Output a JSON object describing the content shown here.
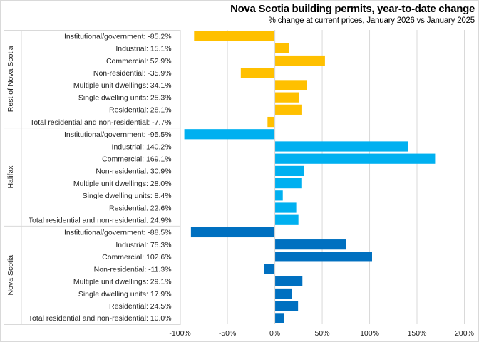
{
  "chart_data": {
    "type": "bar",
    "orientation": "horizontal",
    "title": "Nova Scotia building permits, year-to-date change",
    "subtitle": "% change at current prices, January 2026 vs January 2025",
    "xlabel": "",
    "ylabel": "",
    "xlim": [
      -100,
      200
    ],
    "xticks": [
      -100,
      -50,
      0,
      50,
      100,
      150,
      200
    ],
    "xtick_labels": [
      "-100%",
      "-50%",
      "0%",
      "50%",
      "100%",
      "150%",
      "200%"
    ],
    "grid": true,
    "groups": [
      {
        "name": "Rest of Nova Scotia",
        "color": "#FFC000",
        "categories": [
          "Institutional/government: -85.2%",
          "Industrial: 15.1%",
          "Commercial: 52.9%",
          "Non-residential: -35.9%",
          "Multiple unit dwellings: 34.1%",
          "Single dwelling units: 25.3%",
          "Residential: 28.1%",
          "Total residential and non-residential: -7.7%"
        ],
        "values": [
          -85.2,
          15.1,
          52.9,
          -35.9,
          34.1,
          25.3,
          28.1,
          -7.7
        ]
      },
      {
        "name": "Halifax",
        "color": "#00B0F0",
        "categories": [
          "Institutional/government: -95.5%",
          "Industrial: 140.2%",
          "Commercial: 169.1%",
          "Non-residential: 30.9%",
          "Multiple unit dwellings: 28.0%",
          "Single dwelling units: 8.4%",
          "Residential: 22.6%",
          "Total residential and non-residential: 24.9%"
        ],
        "values": [
          -95.5,
          140.2,
          169.1,
          30.9,
          28.0,
          8.4,
          22.6,
          24.9
        ]
      },
      {
        "name": "Nova Scotia",
        "color": "#0070C0",
        "categories": [
          "Institutional/government: -88.5%",
          "Industrial: 75.3%",
          "Commercial: 102.6%",
          "Non-residential: -11.3%",
          "Multiple unit dwellings: 29.1%",
          "Single dwelling units: 17.9%",
          "Residential: 24.5%",
          "Total residential and non-residential: 10.0%"
        ],
        "values": [
          -88.5,
          75.3,
          102.6,
          -11.3,
          29.1,
          17.9,
          24.5,
          10.0
        ]
      }
    ]
  }
}
